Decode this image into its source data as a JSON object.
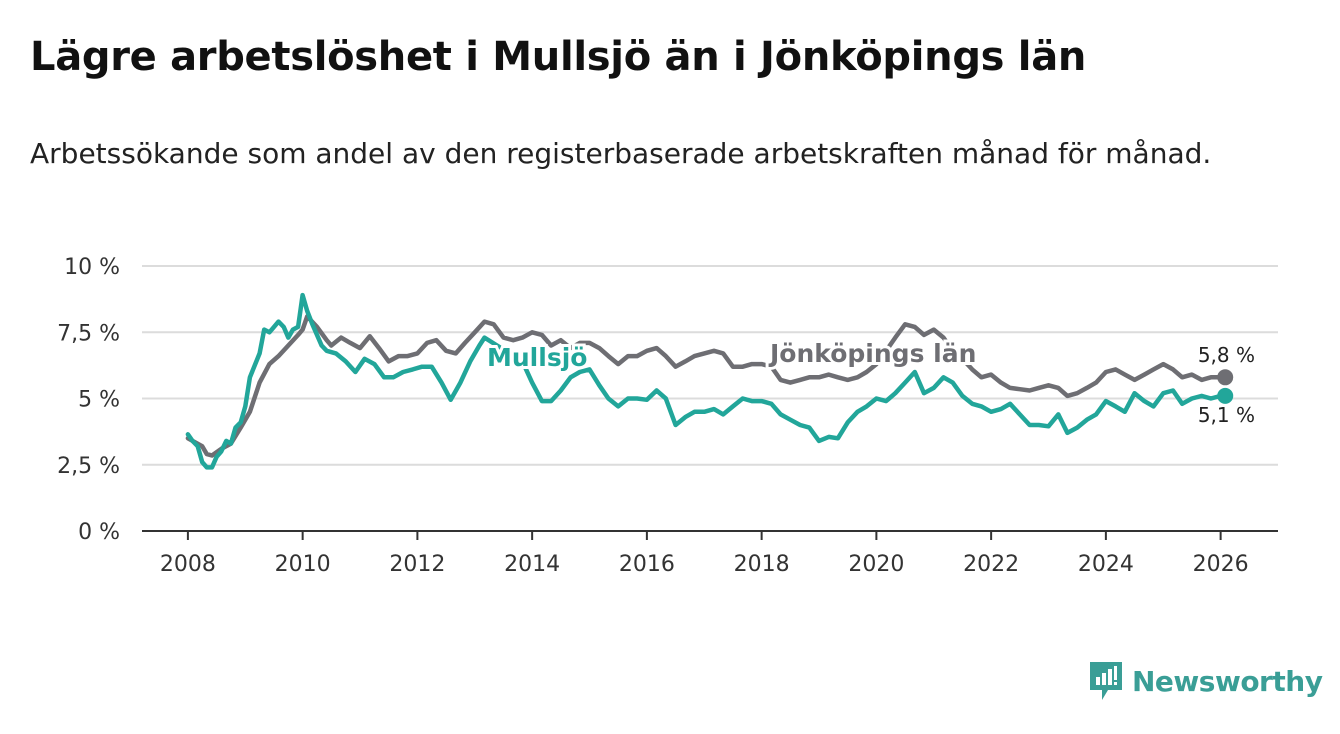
{
  "title": "Lägre arbetslöshet i Mullsjö än i Jönköpings län",
  "subtitle": "Arbetssökande som andel av den registerbaserade arbetskraften månad för månad.",
  "brand": {
    "name": "Newsworthy",
    "color": "#3a9e96"
  },
  "chart_data": {
    "type": "line",
    "x_range": [
      2007.2,
      2027.0
    ],
    "ylim": [
      0,
      10
    ],
    "y_ticks": [
      0,
      2.5,
      5,
      7.5,
      10
    ],
    "y_tick_labels": [
      "0 %",
      "2,5 %",
      "5 %",
      "7,5 %",
      "10 %"
    ],
    "x_ticks": [
      2008,
      2010,
      2012,
      2014,
      2016,
      2018,
      2020,
      2022,
      2024,
      2026
    ],
    "x_tick_labels": [
      "2008",
      "2010",
      "2012",
      "2014",
      "2016",
      "2018",
      "2020",
      "2022",
      "2024",
      "2026"
    ],
    "grid": true,
    "legend": "inline labels",
    "series": [
      {
        "name": "Jönköpings län",
        "label": "Jönköpings län",
        "color": "#6e6e73",
        "end_label": "5,8 %",
        "points": [
          [
            2008,
            3.5
          ],
          [
            2008.25,
            3.2
          ],
          [
            2008.33,
            2.9
          ],
          [
            2008.42,
            2.85
          ],
          [
            2008.58,
            3.1
          ],
          [
            2008.75,
            3.3
          ],
          [
            2008.92,
            3.9
          ],
          [
            2009.08,
            4.5
          ],
          [
            2009.25,
            5.6
          ],
          [
            2009.42,
            6.3
          ],
          [
            2009.58,
            6.6
          ],
          [
            2009.75,
            7.0
          ],
          [
            2009.92,
            7.4
          ],
          [
            2010.0,
            7.6
          ],
          [
            2010.08,
            8.1
          ],
          [
            2010.25,
            7.7
          ],
          [
            2010.42,
            7.2
          ],
          [
            2010.5,
            7.0
          ],
          [
            2010.67,
            7.3
          ],
          [
            2010.83,
            7.1
          ],
          [
            2011.0,
            6.9
          ],
          [
            2011.17,
            7.35
          ],
          [
            2011.33,
            6.9
          ],
          [
            2011.5,
            6.4
          ],
          [
            2011.67,
            6.6
          ],
          [
            2011.83,
            6.6
          ],
          [
            2012.0,
            6.7
          ],
          [
            2012.17,
            7.1
          ],
          [
            2012.33,
            7.2
          ],
          [
            2012.5,
            6.8
          ],
          [
            2012.67,
            6.7
          ],
          [
            2012.83,
            7.1
          ],
          [
            2013.0,
            7.5
          ],
          [
            2013.17,
            7.9
          ],
          [
            2013.33,
            7.8
          ],
          [
            2013.5,
            7.3
          ],
          [
            2013.67,
            7.2
          ],
          [
            2013.83,
            7.3
          ],
          [
            2014.0,
            7.5
          ],
          [
            2014.17,
            7.4
          ],
          [
            2014.33,
            7.0
          ],
          [
            2014.5,
            7.2
          ],
          [
            2014.67,
            6.9
          ],
          [
            2014.83,
            7.1
          ],
          [
            2015.0,
            7.1
          ],
          [
            2015.17,
            6.9
          ],
          [
            2015.33,
            6.6
          ],
          [
            2015.5,
            6.3
          ],
          [
            2015.67,
            6.6
          ],
          [
            2015.83,
            6.6
          ],
          [
            2016.0,
            6.8
          ],
          [
            2016.17,
            6.9
          ],
          [
            2016.33,
            6.6
          ],
          [
            2016.5,
            6.2
          ],
          [
            2016.67,
            6.4
          ],
          [
            2016.83,
            6.6
          ],
          [
            2017.0,
            6.7
          ],
          [
            2017.17,
            6.8
          ],
          [
            2017.33,
            6.7
          ],
          [
            2017.5,
            6.2
          ],
          [
            2017.67,
            6.2
          ],
          [
            2017.83,
            6.3
          ],
          [
            2018.0,
            6.3
          ],
          [
            2018.17,
            6.2
          ],
          [
            2018.33,
            5.7
          ],
          [
            2018.5,
            5.6
          ],
          [
            2018.67,
            5.7
          ],
          [
            2018.83,
            5.8
          ],
          [
            2019.0,
            5.8
          ],
          [
            2019.17,
            5.9
          ],
          [
            2019.33,
            5.8
          ],
          [
            2019.5,
            5.7
          ],
          [
            2019.67,
            5.8
          ],
          [
            2019.83,
            6.0
          ],
          [
            2020.0,
            6.3
          ],
          [
            2020.17,
            6.8
          ],
          [
            2020.33,
            7.3
          ],
          [
            2020.5,
            7.8
          ],
          [
            2020.67,
            7.7
          ],
          [
            2020.83,
            7.4
          ],
          [
            2021.0,
            7.6
          ],
          [
            2021.17,
            7.3
          ],
          [
            2021.33,
            6.8
          ],
          [
            2021.5,
            6.5
          ],
          [
            2021.67,
            6.1
          ],
          [
            2021.83,
            5.8
          ],
          [
            2022.0,
            5.9
          ],
          [
            2022.17,
            5.6
          ],
          [
            2022.33,
            5.4
          ],
          [
            2022.5,
            5.35
          ],
          [
            2022.67,
            5.3
          ],
          [
            2022.83,
            5.4
          ],
          [
            2023.0,
            5.5
          ],
          [
            2023.17,
            5.4
          ],
          [
            2023.33,
            5.1
          ],
          [
            2023.5,
            5.2
          ],
          [
            2023.67,
            5.4
          ],
          [
            2023.83,
            5.6
          ],
          [
            2024.0,
            6.0
          ],
          [
            2024.17,
            6.1
          ],
          [
            2024.33,
            5.9
          ],
          [
            2024.5,
            5.7
          ],
          [
            2024.67,
            5.9
          ],
          [
            2024.83,
            6.1
          ],
          [
            2025.0,
            6.3
          ],
          [
            2025.17,
            6.1
          ],
          [
            2025.33,
            5.8
          ],
          [
            2025.5,
            5.9
          ],
          [
            2025.67,
            5.7
          ],
          [
            2025.83,
            5.8
          ],
          [
            2026.08,
            5.8
          ]
        ]
      },
      {
        "name": "Mullsjö",
        "label": "Mullsjö",
        "color": "#22a69a",
        "end_label": "5,1 %",
        "points": [
          [
            2008,
            3.65
          ],
          [
            2008.08,
            3.4
          ],
          [
            2008.17,
            3.2
          ],
          [
            2008.25,
            2.6
          ],
          [
            2008.33,
            2.4
          ],
          [
            2008.42,
            2.4
          ],
          [
            2008.5,
            2.8
          ],
          [
            2008.58,
            3.0
          ],
          [
            2008.67,
            3.4
          ],
          [
            2008.75,
            3.3
          ],
          [
            2008.83,
            3.9
          ],
          [
            2008.92,
            4.1
          ],
          [
            2009.0,
            4.7
          ],
          [
            2009.08,
            5.8
          ],
          [
            2009.25,
            6.7
          ],
          [
            2009.33,
            7.6
          ],
          [
            2009.42,
            7.5
          ],
          [
            2009.5,
            7.7
          ],
          [
            2009.58,
            7.9
          ],
          [
            2009.67,
            7.7
          ],
          [
            2009.75,
            7.3
          ],
          [
            2009.83,
            7.6
          ],
          [
            2009.92,
            7.7
          ],
          [
            2010.0,
            8.9
          ],
          [
            2010.08,
            8.3
          ],
          [
            2010.17,
            7.8
          ],
          [
            2010.33,
            7.0
          ],
          [
            2010.42,
            6.8
          ],
          [
            2010.58,
            6.7
          ],
          [
            2010.75,
            6.4
          ],
          [
            2010.92,
            6.0
          ],
          [
            2011.08,
            6.5
          ],
          [
            2011.25,
            6.3
          ],
          [
            2011.42,
            5.8
          ],
          [
            2011.58,
            5.8
          ],
          [
            2011.75,
            6.0
          ],
          [
            2011.92,
            6.1
          ],
          [
            2012.08,
            6.2
          ],
          [
            2012.25,
            6.2
          ],
          [
            2012.42,
            5.6
          ],
          [
            2012.58,
            4.95
          ],
          [
            2012.75,
            5.6
          ],
          [
            2012.92,
            6.4
          ],
          [
            2013.08,
            7.0
          ],
          [
            2013.17,
            7.3
          ],
          [
            2013.83,
            6.4
          ],
          [
            2014.0,
            5.6
          ],
          [
            2014.17,
            4.9
          ],
          [
            2014.33,
            4.9
          ],
          [
            2014.5,
            5.3
          ],
          [
            2014.67,
            5.8
          ],
          [
            2014.83,
            6.0
          ],
          [
            2015.0,
            6.1
          ],
          [
            2015.17,
            5.5
          ],
          [
            2015.33,
            5.0
          ],
          [
            2015.5,
            4.7
          ],
          [
            2015.67,
            5.0
          ],
          [
            2015.83,
            5.0
          ],
          [
            2016.0,
            4.95
          ],
          [
            2016.17,
            5.3
          ],
          [
            2016.33,
            5.0
          ],
          [
            2016.5,
            4.0
          ],
          [
            2016.67,
            4.3
          ],
          [
            2016.83,
            4.5
          ],
          [
            2017.0,
            4.5
          ],
          [
            2017.17,
            4.6
          ],
          [
            2017.33,
            4.4
          ],
          [
            2017.5,
            4.7
          ],
          [
            2017.67,
            5.0
          ],
          [
            2017.83,
            4.9
          ],
          [
            2018.0,
            4.9
          ],
          [
            2018.17,
            4.8
          ],
          [
            2018.33,
            4.4
          ],
          [
            2018.5,
            4.2
          ],
          [
            2018.67,
            4.0
          ],
          [
            2018.83,
            3.9
          ],
          [
            2019.0,
            3.4
          ],
          [
            2019.17,
            3.55
          ],
          [
            2019.33,
            3.5
          ],
          [
            2019.5,
            4.1
          ],
          [
            2019.67,
            4.5
          ],
          [
            2019.83,
            4.7
          ],
          [
            2020.0,
            5.0
          ],
          [
            2020.17,
            4.9
          ],
          [
            2020.33,
            5.2
          ],
          [
            2020.5,
            5.6
          ],
          [
            2020.67,
            6.0
          ],
          [
            2020.83,
            5.2
          ],
          [
            2021.0,
            5.4
          ],
          [
            2021.17,
            5.8
          ],
          [
            2021.33,
            5.6
          ],
          [
            2021.5,
            5.1
          ],
          [
            2021.67,
            4.8
          ],
          [
            2021.83,
            4.7
          ],
          [
            2022.0,
            4.5
          ],
          [
            2022.17,
            4.6
          ],
          [
            2022.33,
            4.8
          ],
          [
            2022.5,
            4.4
          ],
          [
            2022.67,
            4.0
          ],
          [
            2022.83,
            4.0
          ],
          [
            2023.0,
            3.95
          ],
          [
            2023.17,
            4.4
          ],
          [
            2023.33,
            3.7
          ],
          [
            2023.5,
            3.9
          ],
          [
            2023.67,
            4.2
          ],
          [
            2023.83,
            4.4
          ],
          [
            2024.0,
            4.9
          ],
          [
            2024.17,
            4.7
          ],
          [
            2024.33,
            4.5
          ],
          [
            2024.5,
            5.2
          ],
          [
            2024.67,
            4.9
          ],
          [
            2024.83,
            4.7
          ],
          [
            2025.0,
            5.2
          ],
          [
            2025.17,
            5.3
          ],
          [
            2025.33,
            4.8
          ],
          [
            2025.5,
            5.0
          ],
          [
            2025.67,
            5.1
          ],
          [
            2025.83,
            5.0
          ],
          [
            2026.0,
            5.1
          ],
          [
            2026.08,
            5.1
          ]
        ]
      }
    ]
  }
}
